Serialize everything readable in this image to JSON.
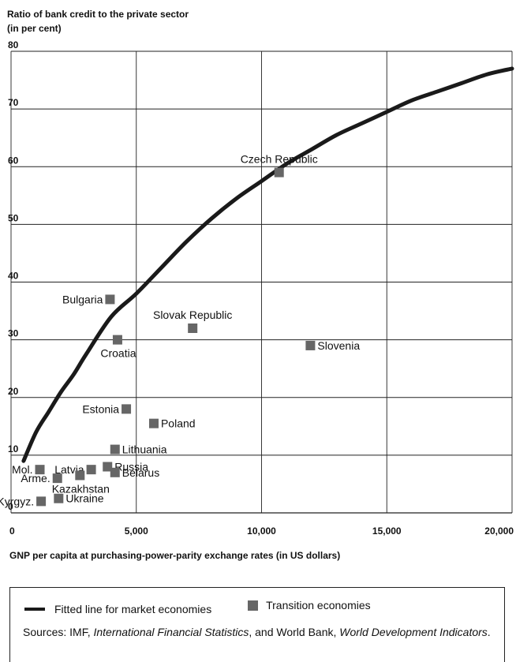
{
  "chart_data": {
    "type": "scatter",
    "ylabel_line1": "Ratio of bank credit to the private sector",
    "ylabel_line2": "(in per cent)",
    "xlabel": "GNP per capita at purchasing-power-parity exchange rates (in US dollars)",
    "xlim": [
      0,
      20000
    ],
    "ylim": [
      0,
      80
    ],
    "x_ticks": [
      {
        "value": 0,
        "label": "0"
      },
      {
        "value": 5000,
        "label": "5,000"
      },
      {
        "value": 10000,
        "label": "10,000"
      },
      {
        "value": 15000,
        "label": "15,000"
      },
      {
        "value": 20000,
        "label": "20,000"
      }
    ],
    "y_ticks": [
      {
        "value": 0,
        "label": "0"
      },
      {
        "value": 10,
        "label": "10"
      },
      {
        "value": 20,
        "label": "20"
      },
      {
        "value": 30,
        "label": "30"
      },
      {
        "value": 40,
        "label": "40"
      },
      {
        "value": 50,
        "label": "50"
      },
      {
        "value": 60,
        "label": "60"
      },
      {
        "value": 70,
        "label": "70"
      },
      {
        "value": 80,
        "label": "80"
      }
    ],
    "grid": true,
    "series": [
      {
        "name": "Transition economies",
        "color": "#666666",
        "points": [
          {
            "label": "Czech Republic",
            "x": 10700,
            "y": 59,
            "label_pos": "above"
          },
          {
            "label": "Bulgaria",
            "x": 3950,
            "y": 37,
            "label_pos": "left"
          },
          {
            "label": "Slovak Republic",
            "x": 7250,
            "y": 32,
            "label_pos": "above"
          },
          {
            "label": "Croatia",
            "x": 4250,
            "y": 30,
            "label_pos": "below"
          },
          {
            "label": "Slovenia",
            "x": 11950,
            "y": 29,
            "label_pos": "right"
          },
          {
            "label": "Estonia",
            "x": 4600,
            "y": 18,
            "label_pos": "left"
          },
          {
            "label": "Poland",
            "x": 5700,
            "y": 15.5,
            "label_pos": "right"
          },
          {
            "label": "Lithuania",
            "x": 4150,
            "y": 11,
            "label_pos": "right"
          },
          {
            "label": "Russia",
            "x": 3850,
            "y": 8,
            "label_pos": "right"
          },
          {
            "label": "Belarus",
            "x": 4150,
            "y": 7,
            "label_pos": "right"
          },
          {
            "label": "Latvia",
            "x": 3200,
            "y": 7.5,
            "label_pos": "left"
          },
          {
            "label": "Kazakhstan",
            "x": 2750,
            "y": 6.5,
            "label_pos": "below"
          },
          {
            "label": "Mol.",
            "x": 1150,
            "y": 7.5,
            "label_pos": "left"
          },
          {
            "label": "Arme.",
            "x": 1850,
            "y": 6,
            "label_pos": "left"
          },
          {
            "label": "Kyrgyz.",
            "x": 1200,
            "y": 2,
            "label_pos": "left"
          },
          {
            "label": "Ukraine",
            "x": 1900,
            "y": 2.5,
            "label_pos": "right"
          }
        ]
      },
      {
        "name": "Fitted line for market economies",
        "color": "#1a1a1a",
        "line": [
          [
            500,
            9
          ],
          [
            1000,
            14
          ],
          [
            1500,
            17.5
          ],
          [
            2000,
            21
          ],
          [
            2500,
            24
          ],
          [
            3000,
            27.5
          ],
          [
            4000,
            34
          ],
          [
            5000,
            38
          ],
          [
            6000,
            42.5
          ],
          [
            7000,
            47
          ],
          [
            8000,
            51
          ],
          [
            9000,
            54.5
          ],
          [
            10000,
            57.5
          ],
          [
            11000,
            60.5
          ],
          [
            12000,
            63
          ],
          [
            13000,
            65.5
          ],
          [
            14000,
            67.5
          ],
          [
            15000,
            69.5
          ],
          [
            16000,
            71.5
          ],
          [
            17000,
            73
          ],
          [
            18000,
            74.5
          ],
          [
            19000,
            76
          ],
          [
            20000,
            77
          ]
        ]
      }
    ]
  },
  "legend": {
    "line_label": "Fitted line for market economies",
    "marker_label": "Transition economies"
  },
  "sources": {
    "prefix": "Sources: IMF, ",
    "title1": "International Financial Statistics",
    "middle": ", and World Bank, ",
    "title2": "World Development Indicators",
    "suffix": "."
  }
}
